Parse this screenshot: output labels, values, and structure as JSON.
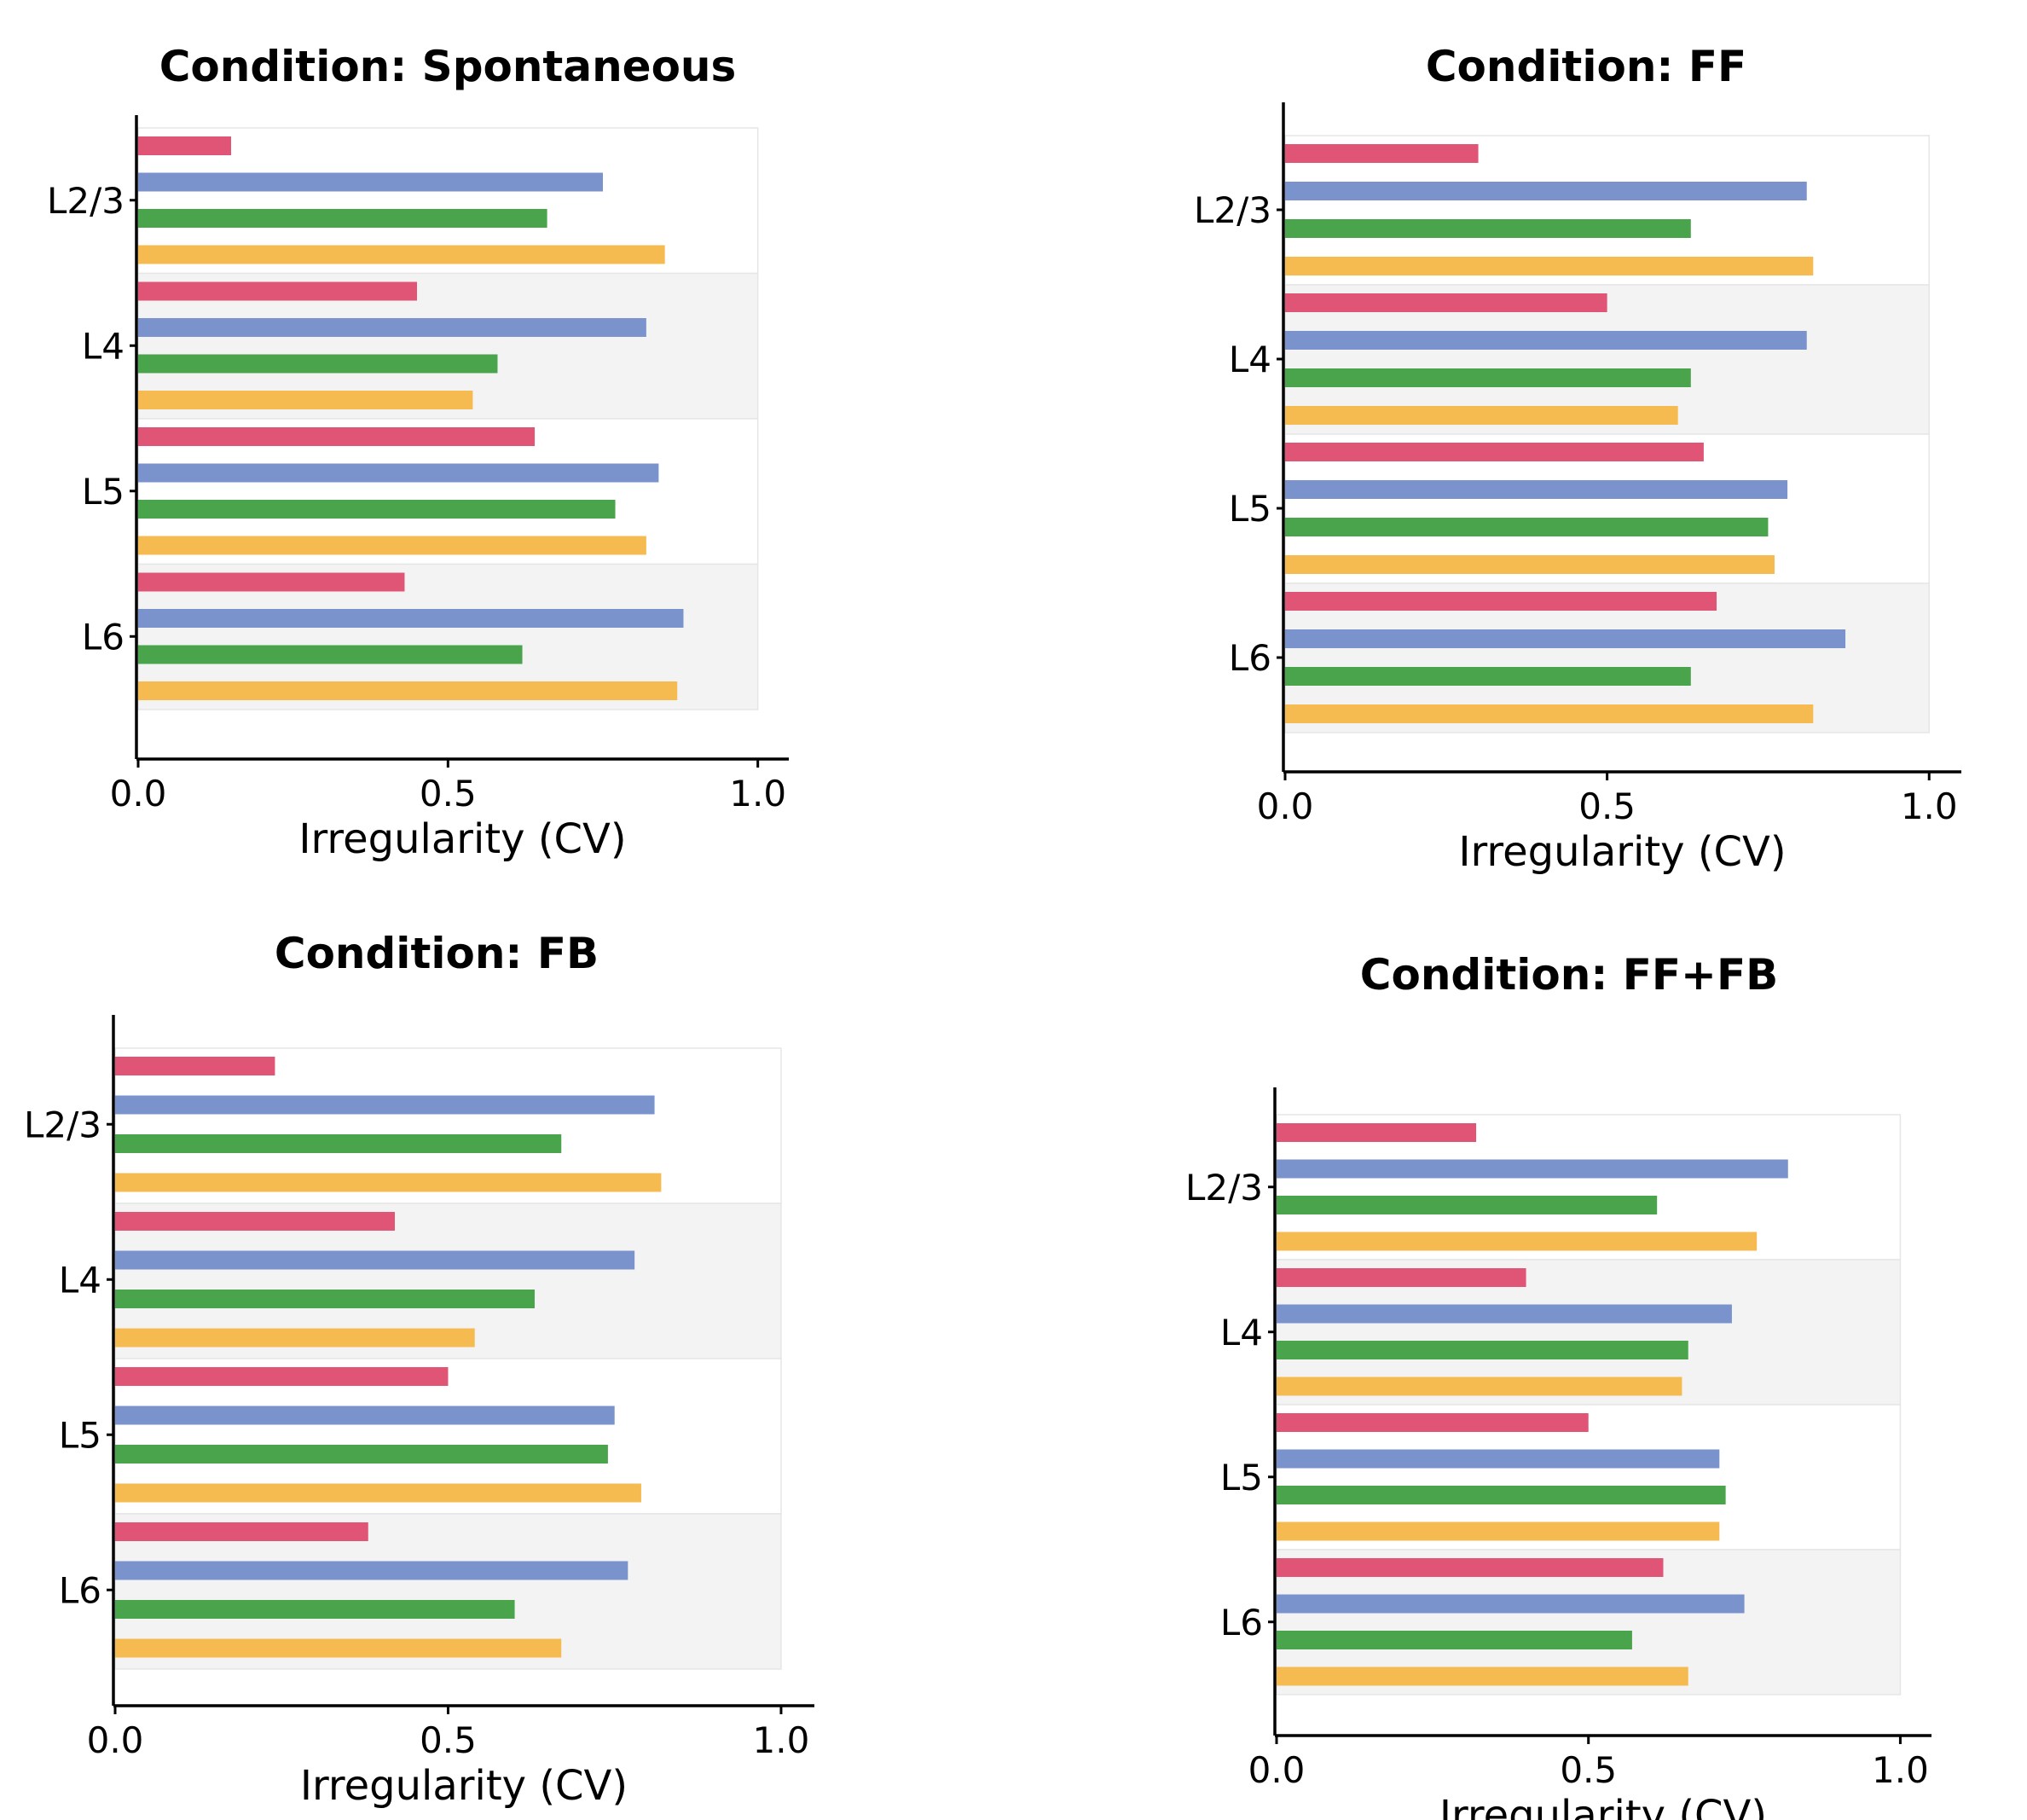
{
  "chart_data": [
    {
      "type": "bar",
      "orientation": "horizontal",
      "title": "Condition: Spontaneous",
      "xlabel": "Irregularity (CV)",
      "ylabel": "",
      "xlim": [
        0,
        1.05
      ],
      "xticks": [
        "0.0",
        "0.5",
        "1.0"
      ],
      "categories": [
        "L2/3",
        "L4",
        "L5",
        "L6"
      ],
      "series": [
        {
          "color": "#e05575",
          "values": [
            0.15,
            0.45,
            0.64,
            0.43
          ]
        },
        {
          "color": "#7b93cc",
          "values": [
            0.75,
            0.82,
            0.84,
            0.88
          ]
        },
        {
          "color": "#4aa44c",
          "values": [
            0.66,
            0.58,
            0.77,
            0.62
          ]
        },
        {
          "color": "#f5bb50",
          "values": [
            0.85,
            0.54,
            0.82,
            0.87
          ]
        }
      ]
    },
    {
      "type": "bar",
      "orientation": "horizontal",
      "title": "Condition: FF",
      "xlabel": "Irregularity (CV)",
      "ylabel": "",
      "xlim": [
        0,
        1.05
      ],
      "xticks": [
        "0.0",
        "0.5",
        "1.0"
      ],
      "categories": [
        "L2/3",
        "L4",
        "L5",
        "L6"
      ],
      "series": [
        {
          "color": "#e05575",
          "values": [
            0.3,
            0.5,
            0.65,
            0.67
          ]
        },
        {
          "color": "#7b93cc",
          "values": [
            0.81,
            0.81,
            0.78,
            0.87
          ]
        },
        {
          "color": "#4aa44c",
          "values": [
            0.63,
            0.63,
            0.75,
            0.63
          ]
        },
        {
          "color": "#f5bb50",
          "values": [
            0.82,
            0.61,
            0.76,
            0.82
          ]
        }
      ]
    },
    {
      "type": "bar",
      "orientation": "horizontal",
      "title": "Condition: FB",
      "xlabel": "Irregularity (CV)",
      "ylabel": "",
      "xlim": [
        0,
        1.05
      ],
      "xticks": [
        "0.0",
        "0.5",
        "1.0"
      ],
      "categories": [
        "L2/3",
        "L4",
        "L5",
        "L6"
      ],
      "series": [
        {
          "color": "#e05575",
          "values": [
            0.24,
            0.42,
            0.5,
            0.38
          ]
        },
        {
          "color": "#7b93cc",
          "values": [
            0.81,
            0.78,
            0.75,
            0.77
          ]
        },
        {
          "color": "#4aa44c",
          "values": [
            0.67,
            0.63,
            0.74,
            0.6
          ]
        },
        {
          "color": "#f5bb50",
          "values": [
            0.82,
            0.54,
            0.79,
            0.67
          ]
        }
      ]
    },
    {
      "type": "bar",
      "orientation": "horizontal",
      "title": "Condition: FF+FB",
      "xlabel": "Irregularity (CV)",
      "ylabel": "",
      "xlim": [
        0,
        1.05
      ],
      "xticks": [
        "0.0",
        "0.5",
        "1.0"
      ],
      "categories": [
        "L2/3",
        "L4",
        "L5",
        "L6"
      ],
      "series": [
        {
          "color": "#e05575",
          "values": [
            0.32,
            0.4,
            0.5,
            0.62
          ]
        },
        {
          "color": "#7b93cc",
          "values": [
            0.82,
            0.73,
            0.71,
            0.75
          ]
        },
        {
          "color": "#4aa44c",
          "values": [
            0.61,
            0.66,
            0.72,
            0.57
          ]
        },
        {
          "color": "#f5bb50",
          "values": [
            0.77,
            0.65,
            0.71,
            0.66
          ]
        }
      ]
    }
  ],
  "colors": {
    "band_shade": "#f3f3f3",
    "band_border": "#e6e6e6",
    "axis": "#000000"
  }
}
